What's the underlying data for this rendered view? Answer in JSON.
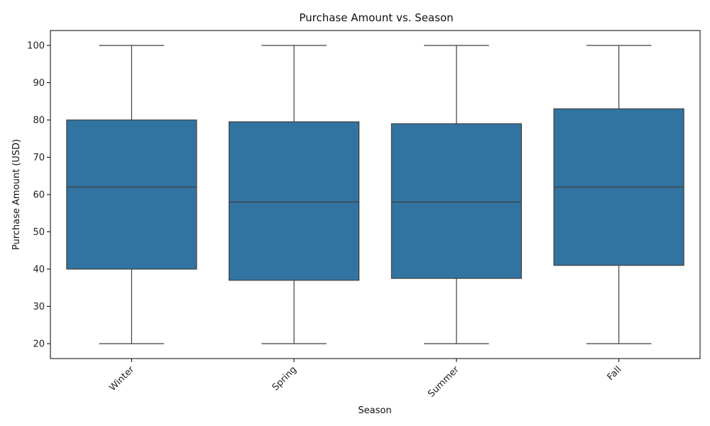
{
  "chart_data": {
    "type": "box",
    "title": "Purchase Amount vs. Season",
    "xlabel": "Season",
    "ylabel": "Purchase Amount (USD)",
    "ylim": [
      16,
      104
    ],
    "yticks": [
      20,
      30,
      40,
      50,
      60,
      70,
      80,
      90,
      100
    ],
    "grid": false,
    "box_color": "#3274a1",
    "line_color": "#3f3f3f",
    "categories": [
      "Winter",
      "Spring",
      "Summer",
      "Fall"
    ],
    "boxes": [
      {
        "category": "Winter",
        "min": 20,
        "q1": 40,
        "median": 62,
        "q3": 80,
        "max": 100
      },
      {
        "category": "Spring",
        "min": 20,
        "q1": 37,
        "median": 58,
        "q3": 79.5,
        "max": 100
      },
      {
        "category": "Summer",
        "min": 20,
        "q1": 37.5,
        "median": 58,
        "q3": 79,
        "max": 100
      },
      {
        "category": "Fall",
        "min": 20,
        "q1": 41,
        "median": 62,
        "q3": 83,
        "max": 100
      }
    ]
  }
}
